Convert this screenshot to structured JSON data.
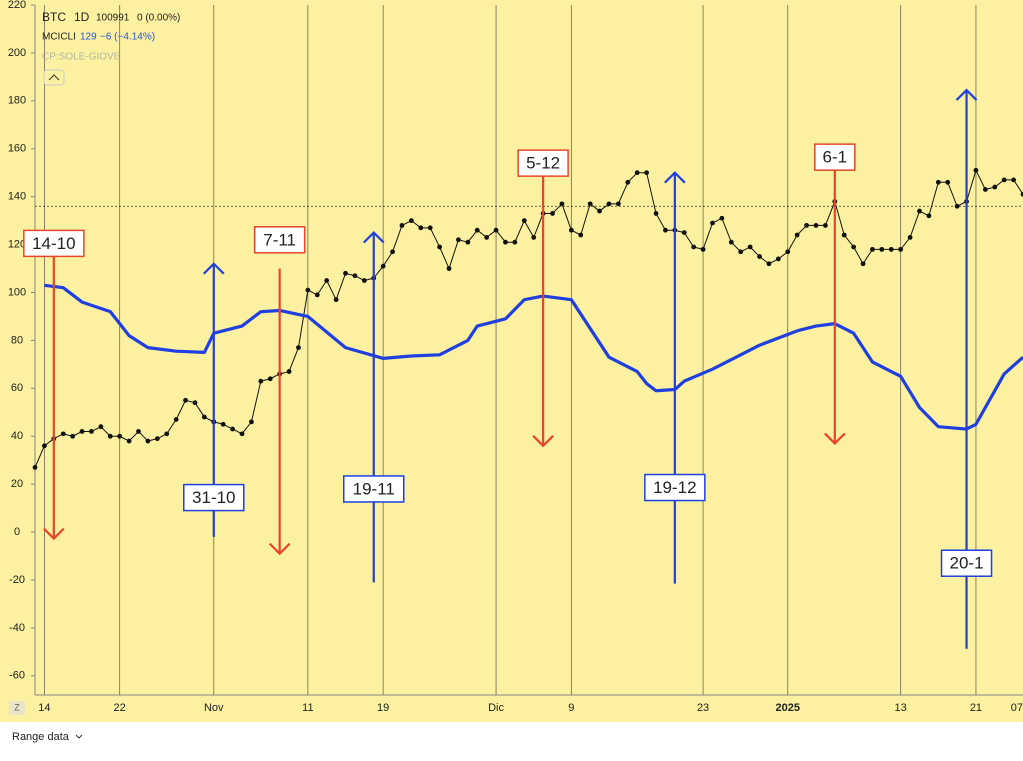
{
  "header": {
    "symbol": "BTC",
    "interval": "1D",
    "price": "100991",
    "change": "0 (0.00%)",
    "indicator": "MCICLI",
    "indicator_value": "129",
    "indicator_change": "−6 (−4.14%)",
    "overlay": "CP:SOLE-GIOVE"
  },
  "footer": {
    "range": "Range data",
    "zoom": "Z",
    "date_label": "07"
  },
  "chart_data": {
    "type": "line",
    "xlim": [
      -1,
      104
    ],
    "ylim": [
      -68,
      220
    ],
    "xticks": [
      {
        "value": 0,
        "label": "14"
      },
      {
        "value": 8,
        "label": "22"
      },
      {
        "value": 18,
        "label": "Nov"
      },
      {
        "value": 28,
        "label": "11"
      },
      {
        "value": 36,
        "label": "19"
      },
      {
        "value": 48,
        "label": "Dic"
      },
      {
        "value": 56,
        "label": "9"
      },
      {
        "value": 70,
        "label": "23"
      },
      {
        "value": 79,
        "label": "2025"
      },
      {
        "value": 91,
        "label": "13"
      },
      {
        "value": 99,
        "label": "21"
      }
    ],
    "yticks": [
      -60,
      -40,
      -20,
      0,
      20,
      40,
      60,
      80,
      100,
      120,
      140,
      160,
      180,
      200,
      220
    ],
    "grid": true,
    "hline": 136,
    "series": [
      {
        "name": "MCICLI",
        "color": "#111111",
        "markers": true,
        "x": [
          -1,
          0,
          1,
          2,
          3,
          4,
          5,
          6,
          7,
          8,
          9,
          10,
          11,
          12,
          13,
          14,
          15,
          16,
          17,
          18,
          19,
          20,
          21,
          22,
          23,
          24,
          25,
          26,
          27,
          28,
          29,
          30,
          31,
          32,
          33,
          34,
          35,
          36,
          37,
          38,
          39,
          40,
          41,
          42,
          43,
          44,
          45,
          46,
          47,
          48,
          49,
          50,
          51,
          52,
          53,
          54,
          55,
          56,
          57,
          58,
          59,
          60,
          61,
          62,
          63,
          64,
          65,
          66,
          67,
          68,
          69,
          70,
          71,
          72,
          73,
          74,
          75,
          76,
          77,
          78,
          79,
          80,
          81,
          82,
          83,
          84,
          85,
          86,
          87,
          88,
          89,
          90,
          91,
          92,
          93,
          94,
          95,
          96,
          97,
          98,
          99,
          100,
          101,
          102,
          103,
          104
        ],
        "values": [
          27,
          36,
          39,
          41,
          40,
          42,
          42,
          44,
          40,
          40,
          38,
          42,
          38,
          39,
          41,
          47,
          55,
          54,
          48,
          46,
          45,
          43,
          41,
          46,
          63,
          64,
          66,
          67,
          77,
          101,
          99,
          105,
          97,
          108,
          107,
          105,
          106,
          111,
          117,
          128,
          130,
          127,
          127,
          119,
          110,
          122,
          121,
          126,
          123,
          126,
          121,
          121,
          130,
          123,
          133,
          133,
          137,
          126,
          124,
          137,
          134,
          137,
          137,
          146,
          150,
          150,
          133,
          126,
          126,
          125,
          119,
          118,
          129,
          131,
          121,
          117,
          119,
          115,
          112,
          114,
          117,
          124,
          128,
          128,
          128,
          138,
          124,
          119,
          112,
          118,
          118,
          118,
          118,
          123,
          134,
          132,
          146,
          146,
          136,
          138,
          151,
          143,
          144,
          147,
          147,
          141
        ]
      },
      {
        "name": "CP:SOLE-GIOVE",
        "color": "#1f3fe0",
        "markers": false,
        "x": [
          0,
          2,
          4,
          7,
          9,
          11,
          14,
          17,
          18,
          21,
          23,
          25,
          28,
          32,
          36,
          39,
          42,
          45,
          46,
          49,
          51,
          53,
          56,
          60,
          63,
          64,
          65,
          67,
          68,
          71,
          74,
          76,
          80,
          82,
          84,
          86,
          88,
          91,
          93,
          95,
          98,
          99,
          100,
          102,
          104
        ],
        "values": [
          103,
          102,
          96,
          92,
          82,
          77,
          75.5,
          75,
          83,
          86,
          92,
          92.5,
          90,
          77,
          72.5,
          73.5,
          74,
          80,
          86,
          89,
          97,
          98.5,
          97,
          73,
          67,
          62,
          59,
          59.5,
          63,
          68,
          74,
          78,
          84,
          86,
          87,
          83,
          71,
          65,
          52,
          44,
          43,
          45,
          52,
          66,
          73
        ]
      }
    ],
    "annotations": [
      {
        "text": "14-10",
        "color": "#e8452c",
        "x": 1,
        "from": 115.5,
        "to": -2.7,
        "label_y": 120.5
      },
      {
        "text": "7-11",
        "color": "#e8452c",
        "x": 25,
        "from": 110,
        "to": -9,
        "label_y": 122
      },
      {
        "text": "5-12",
        "color": "#e8452c",
        "x": 53,
        "from": 149,
        "to": 36,
        "label_y": 154
      },
      {
        "text": "6-1",
        "color": "#e8452c",
        "x": 84,
        "from": 151,
        "to": 37,
        "label_y": 156.5
      },
      {
        "text": "31-10",
        "color": "#1f3fe0",
        "x": 18,
        "from": -2,
        "to": 112,
        "label_y": 14.4
      },
      {
        "text": "19-11",
        "color": "#1f3fe0",
        "x": 35,
        "from": -21,
        "to": 125,
        "label_y": 18
      },
      {
        "text": "19-12",
        "color": "#1f3fe0",
        "x": 67,
        "from": -21.5,
        "to": 150,
        "label_y": 18.6
      },
      {
        "text": "20-1",
        "color": "#1f3fe0",
        "x": 98,
        "from": -48.7,
        "to": 184.5,
        "label_y": -13
      }
    ]
  }
}
